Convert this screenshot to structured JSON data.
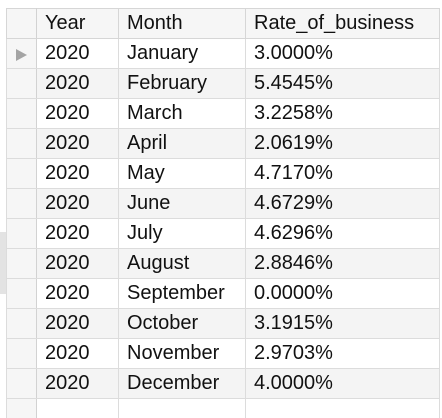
{
  "grid": {
    "columns": [
      "Year",
      "Month",
      "Rate_of_business"
    ],
    "rows": [
      {
        "year": "2020",
        "month": "January",
        "rate": "3.0000%"
      },
      {
        "year": "2020",
        "month": "February",
        "rate": "5.4545%"
      },
      {
        "year": "2020",
        "month": "March",
        "rate": "3.2258%"
      },
      {
        "year": "2020",
        "month": "April",
        "rate": "2.0619%"
      },
      {
        "year": "2020",
        "month": "May",
        "rate": "4.7170%"
      },
      {
        "year": "2020",
        "month": "June",
        "rate": "4.6729%"
      },
      {
        "year": "2020",
        "month": "July",
        "rate": "4.6296%"
      },
      {
        "year": "2020",
        "month": "August",
        "rate": "2.8846%"
      },
      {
        "year": "2020",
        "month": "September",
        "rate": "0.0000%"
      },
      {
        "year": "2020",
        "month": "October",
        "rate": "3.1915%"
      },
      {
        "year": "2020",
        "month": "November",
        "rate": "2.9703%"
      },
      {
        "year": "2020",
        "month": "December",
        "rate": "4.0000%"
      }
    ],
    "current_row_index": 0,
    "current_row_icon": "triangle-right-icon"
  }
}
